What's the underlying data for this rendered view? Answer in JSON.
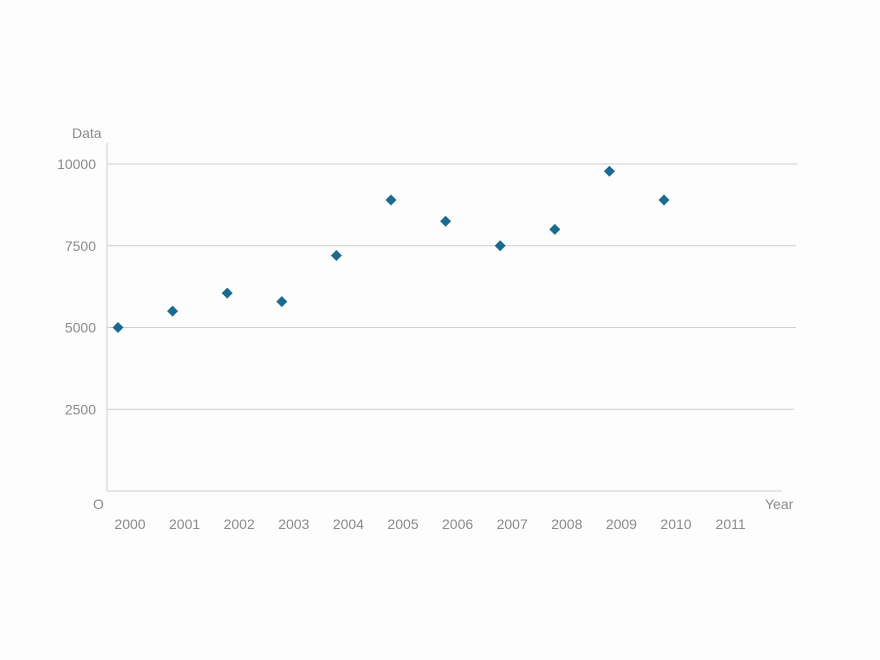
{
  "chart_data": {
    "type": "scatter",
    "title": "",
    "xlabel": "Year",
    "ylabel": "Data",
    "origin_label": "O",
    "x": [
      "2000",
      "2001",
      "2002",
      "2003",
      "2004",
      "2005",
      "2006",
      "2007",
      "2008",
      "2009",
      "2010",
      "2011"
    ],
    "series": [
      {
        "name": "Data",
        "color": "#1a6b8f",
        "marker": "diamond",
        "points": [
          {
            "x": "2000",
            "y": 5000
          },
          {
            "x": "2001",
            "y": 5500
          },
          {
            "x": "2002",
            "y": 6050
          },
          {
            "x": "2003",
            "y": 5790
          },
          {
            "x": "2004",
            "y": 7200
          },
          {
            "x": "2005",
            "y": 8900
          },
          {
            "x": "2006",
            "y": 8250
          },
          {
            "x": "2007",
            "y": 7500
          },
          {
            "x": "2008",
            "y": 8000
          },
          {
            "x": "2009",
            "y": 9780
          },
          {
            "x": "2010",
            "y": 8900
          }
        ]
      }
    ],
    "y_ticks": [
      2500,
      5000,
      7500,
      10000
    ],
    "ylim": [
      0,
      10000
    ],
    "grid": true,
    "legend": "none"
  }
}
